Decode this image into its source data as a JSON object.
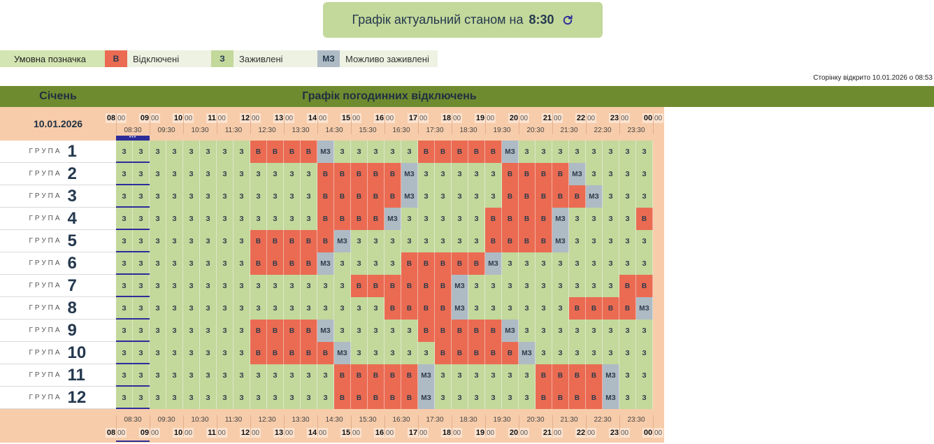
{
  "banner": {
    "label": "Графік актуальний станом на",
    "time": "8:30"
  },
  "legend": {
    "title": "Умовна позначка",
    "items": [
      {
        "code": "В",
        "label": "Відключені",
        "color": "#ea6b52"
      },
      {
        "code": "З",
        "label": "Заживлені",
        "color": "#c3d89b"
      },
      {
        "code": "МЗ",
        "label": "Можливо заживлені",
        "color": "#aebbc5"
      }
    ]
  },
  "opened_note": "Сторінку відкрито 10.01.2026 о 08:53",
  "header": {
    "month": "Січень",
    "title": "Графік погодинних відключень"
  },
  "date": "10.01.2026",
  "hours": [
    "08",
    "09",
    "10",
    "11",
    "12",
    "13",
    "14",
    "15",
    "16",
    "17",
    "18",
    "19",
    "20",
    "21",
    "22",
    "23",
    "00"
  ],
  "minutes": ":00",
  "halves": [
    "08:30",
    "09:30",
    "10:30",
    "11:30",
    "12:30",
    "13:30",
    "14:30",
    "15:30",
    "16:30",
    "17:30",
    "18:30",
    "19:30",
    "20:30",
    "21:30",
    "22:30",
    "23:30"
  ],
  "group_label": "ГРУПА",
  "codes": {
    "z": "З",
    "v": "В",
    "m": "МЗ"
  },
  "colors": {
    "z": "#c3d89b",
    "v": "#ea6b52",
    "m": "#aebbc5",
    "accent": "#6f8b2f",
    "now": "#2d2d9a"
  },
  "groups": [
    {
      "number": "1",
      "slots": "zzzzzzzzvvvvmzzzzzvvvvvmzzzzzzzz"
    },
    {
      "number": "2",
      "slots": "zzzzzzzzzzzzvvvvvmzzzzzvvvvmzzzz"
    },
    {
      "number": "3",
      "slots": "zzzzzzzzzzzzvvvvvmzzzzzvvvvvmzzz"
    },
    {
      "number": "4",
      "slots": "zzzzzzzzzzzzvvvvmzzzzzvvvvmzzzzv"
    },
    {
      "number": "5",
      "slots": "zzzzzzzzvvvvvmzzzzzzzzvvvvmzzzzz"
    },
    {
      "number": "6",
      "slots": "zzzzzzzzvvvvmzzzzvvvvvmzzzzzzzzz"
    },
    {
      "number": "7",
      "slots": "zzzzzzzzzzzzzzvvvvvvmzzzzzzzzzvv"
    },
    {
      "number": "8",
      "slots": "zzzzzzzzzzzzzzzzvvvvmzzzzzzvvvvm"
    },
    {
      "number": "9",
      "slots": "zzzzzzzzvvvvmzzzzzvvvvvmzzzzzzzz"
    },
    {
      "number": "10",
      "slots": "zzzzzzzzvvvvvmzzzzzvvvvvmzzzzzzz"
    },
    {
      "number": "11",
      "slots": "zzzzzzzzzzzzzvvvvvmzzzzzzvvvvmzz"
    },
    {
      "number": "12",
      "slots": "zzzzzzzzzzzzzvvvvvmzzzzzzvvvvmzz"
    }
  ]
}
